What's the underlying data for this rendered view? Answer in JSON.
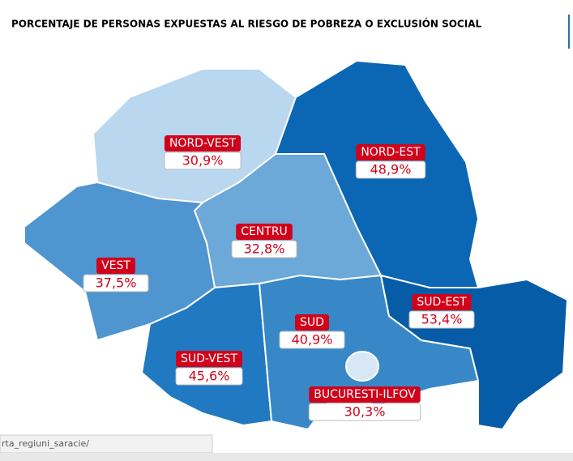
{
  "title": "PORCENTAJE DE PERSONAS EXPUESTAS AL RIESGO DE POBREZA O EXCLUSIÓN SOCIAL",
  "regions": [
    {
      "name": "NORD-VEST",
      "label": "30,9%",
      "color": "#b9d7ef"
    },
    {
      "name": "NORD-EST",
      "label": "48,9%",
      "color": "#0b67b3"
    },
    {
      "name": "CENTRU",
      "label": "32,8%",
      "color": "#6ca8d8"
    },
    {
      "name": "VEST",
      "label": "37,5%",
      "color": "#4f95cf"
    },
    {
      "name": "SUD-VEST",
      "label": "45,6%",
      "color": "#2079c1"
    },
    {
      "name": "SUD",
      "label": "40,9%",
      "color": "#3888c8"
    },
    {
      "name": "SUD-EST",
      "label": "53,4%",
      "color": "#075ca7"
    },
    {
      "name": "BUCURESTI-ILFOV",
      "label": "30,3%",
      "color": "#d8e7f5"
    }
  ],
  "footer": "rta_regiuni_saracie/"
}
